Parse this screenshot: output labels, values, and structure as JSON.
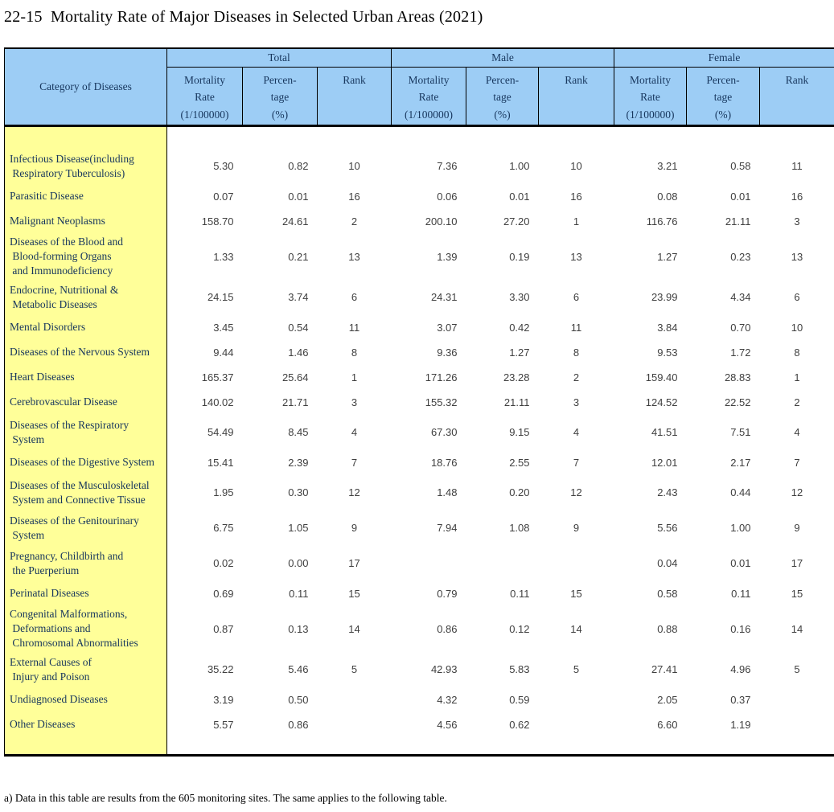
{
  "title": "22-15  Mortality Rate of Major Diseases in Selected Urban Areas (2021)",
  "footnote": "a) Data in this table are results from the 605 monitoring sites. The same applies to the following table.",
  "colors": {
    "header_bg": "#9DCDF5",
    "category_bg": "#FFFF99",
    "header_text": "#17365D",
    "value_text": "#3F3F3F",
    "border": "#000000"
  },
  "table": {
    "category_header": "Category of  Diseases",
    "groups": [
      {
        "label": "Total"
      },
      {
        "label": "Male"
      },
      {
        "label": "Female"
      }
    ],
    "sub_headers": {
      "rate": "Mortality\nRate\n(1/100000)",
      "pct": "Percen-\ntage\n(%)",
      "rank": "Rank"
    },
    "rows": [
      {
        "category": "Infectious Disease(including\n Respiratory Tuberculosis)",
        "total": [
          "5.30",
          "0.82",
          "10"
        ],
        "male": [
          "7.36",
          "1.00",
          "10"
        ],
        "female": [
          "3.21",
          "0.58",
          "11"
        ]
      },
      {
        "category": "Parasitic Disease",
        "total": [
          "0.07",
          "0.01",
          "16"
        ],
        "male": [
          "0.06",
          "0.01",
          "16"
        ],
        "female": [
          "0.08",
          "0.01",
          "16"
        ]
      },
      {
        "category": "Malignant Neoplasms",
        "total": [
          "158.70",
          "24.61",
          "2"
        ],
        "male": [
          "200.10",
          "27.20",
          "1"
        ],
        "female": [
          "116.76",
          "21.11",
          "3"
        ]
      },
      {
        "category": "Diseases of the Blood and\n Blood-forming Organs\n and Immunodeficiency",
        "total": [
          "1.33",
          "0.21",
          "13"
        ],
        "male": [
          "1.39",
          "0.19",
          "13"
        ],
        "female": [
          "1.27",
          "0.23",
          "13"
        ]
      },
      {
        "category": "Endocrine, Nutritional &\n Metabolic Diseases",
        "total": [
          "24.15",
          "3.74",
          "6"
        ],
        "male": [
          "24.31",
          "3.30",
          "6"
        ],
        "female": [
          "23.99",
          "4.34",
          "6"
        ]
      },
      {
        "category": "Mental Disorders",
        "total": [
          "3.45",
          "0.54",
          "11"
        ],
        "male": [
          "3.07",
          "0.42",
          "11"
        ],
        "female": [
          "3.84",
          "0.70",
          "10"
        ]
      },
      {
        "category": "Diseases of the Nervous System",
        "total": [
          "9.44",
          "1.46",
          "8"
        ],
        "male": [
          "9.36",
          "1.27",
          "8"
        ],
        "female": [
          "9.53",
          "1.72",
          "8"
        ]
      },
      {
        "category": "Heart Diseases",
        "total": [
          "165.37",
          "25.64",
          "1"
        ],
        "male": [
          "171.26",
          "23.28",
          "2"
        ],
        "female": [
          "159.40",
          "28.83",
          "1"
        ]
      },
      {
        "category": "Cerebrovascular Disease",
        "total": [
          "140.02",
          "21.71",
          "3"
        ],
        "male": [
          "155.32",
          "21.11",
          "3"
        ],
        "female": [
          "124.52",
          "22.52",
          "2"
        ]
      },
      {
        "category": "Diseases of the Respiratory\n System",
        "total": [
          "54.49",
          "8.45",
          "4"
        ],
        "male": [
          "67.30",
          "9.15",
          "4"
        ],
        "female": [
          "41.51",
          "7.51",
          "4"
        ]
      },
      {
        "category": "Diseases of the Digestive System",
        "total": [
          "15.41",
          "2.39",
          "7"
        ],
        "male": [
          "18.76",
          "2.55",
          "7"
        ],
        "female": [
          "12.01",
          "2.17",
          "7"
        ]
      },
      {
        "category": "Diseases of the Musculoskeletal\n System and Connective Tissue",
        "total": [
          "1.95",
          "0.30",
          "12"
        ],
        "male": [
          "1.48",
          "0.20",
          "12"
        ],
        "female": [
          "2.43",
          "0.44",
          "12"
        ]
      },
      {
        "category": "Diseases of the Genitourinary\n System",
        "total": [
          "6.75",
          "1.05",
          "9"
        ],
        "male": [
          "7.94",
          "1.08",
          "9"
        ],
        "female": [
          "5.56",
          "1.00",
          "9"
        ]
      },
      {
        "category": "Pregnancy, Childbirth and\n the Puerperium",
        "total": [
          "0.02",
          "0.00",
          "17"
        ],
        "male": [
          "",
          "",
          ""
        ],
        "female": [
          "0.04",
          "0.01",
          "17"
        ]
      },
      {
        "category": "Perinatal Diseases",
        "total": [
          "0.69",
          "0.11",
          "15"
        ],
        "male": [
          "0.79",
          "0.11",
          "15"
        ],
        "female": [
          "0.58",
          "0.11",
          "15"
        ]
      },
      {
        "category": "Congenital Malformations,\n Deformations and\n Chromosomal Abnormalities",
        "total": [
          "0.87",
          "0.13",
          "14"
        ],
        "male": [
          "0.86",
          "0.12",
          "14"
        ],
        "female": [
          "0.88",
          "0.16",
          "14"
        ]
      },
      {
        "category": "External Causes of\n Injury and Poison",
        "total": [
          "35.22",
          "5.46",
          "5"
        ],
        "male": [
          "42.93",
          "5.83",
          "5"
        ],
        "female": [
          "27.41",
          "4.96",
          "5"
        ]
      },
      {
        "category": "Undiagnosed Diseases",
        "total": [
          "3.19",
          "0.50",
          ""
        ],
        "male": [
          "4.32",
          "0.59",
          ""
        ],
        "female": [
          "2.05",
          "0.37",
          ""
        ]
      },
      {
        "category": "Other Diseases",
        "total": [
          "5.57",
          "0.86",
          ""
        ],
        "male": [
          "4.56",
          "0.62",
          ""
        ],
        "female": [
          "6.60",
          "1.19",
          ""
        ]
      }
    ]
  }
}
